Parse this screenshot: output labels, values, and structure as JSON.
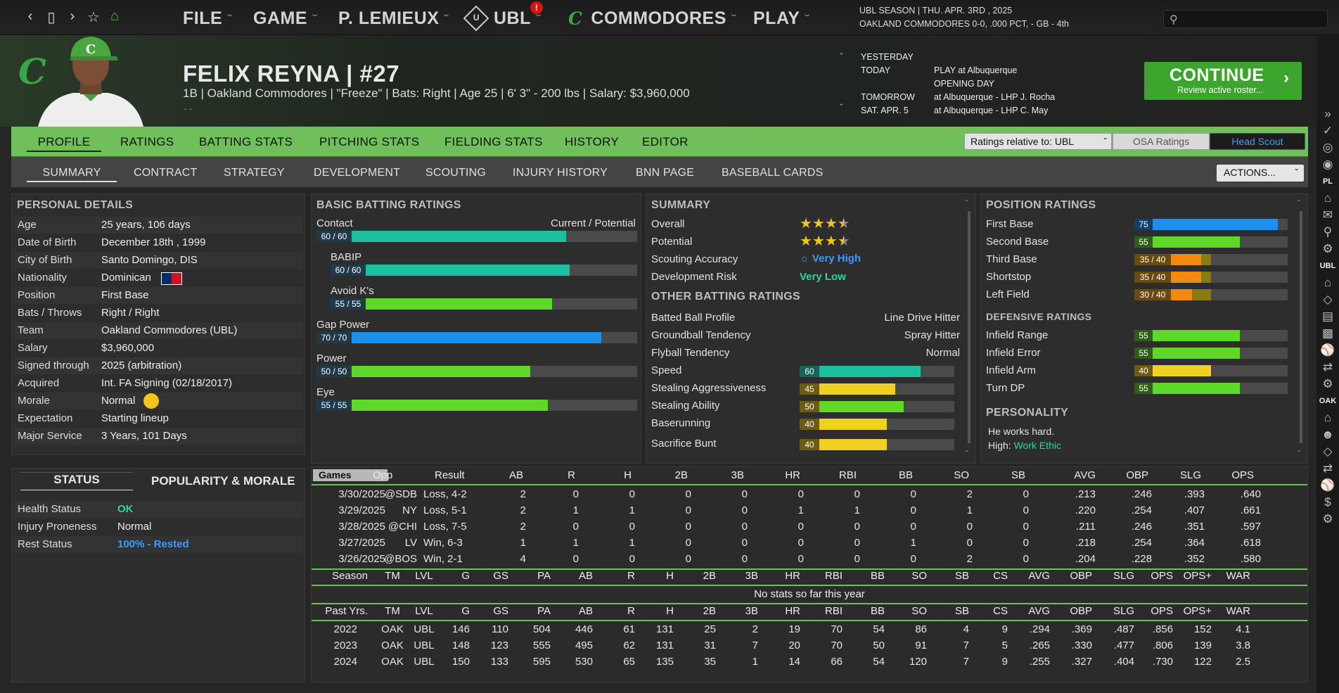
{
  "topnav": {
    "menus": [
      {
        "label": "FILE"
      },
      {
        "label": "GAME"
      },
      {
        "label": "P. LEMIEUX"
      },
      {
        "label": "UBL"
      },
      {
        "label": "COMMODORES"
      },
      {
        "label": "PLAY"
      }
    ],
    "badge": "!",
    "season_line1": "UBL SEASON  |  THU. APR. 3RD , 2025",
    "season_line2": "OAKLAND COMMODORES  0-0, .000 PCT, - GB - 4th"
  },
  "player": {
    "name": "FELIX REYNA  |  #27",
    "info": "1B | Oakland Commodores  |  \"Freeze\" | Bats: Right  |  Age 25  |  6' 3\"  - 200 lbs  |  Salary: $3,960,000"
  },
  "schedule": [
    {
      "label": "YESTERDAY",
      "value": ""
    },
    {
      "label": "TODAY",
      "value": "PLAY at Albuquerque"
    },
    {
      "label": "",
      "value": "OPENING DAY"
    },
    {
      "label": "TOMORROW",
      "value": "at Albuquerque - LHP J. Rocha"
    },
    {
      "label": "SAT. APR. 5",
      "value": "at Albuquerque - LHP C. May"
    }
  ],
  "continue": {
    "title": "CONTINUE",
    "sub": "Review active roster..."
  },
  "tabs_main": [
    "PROFILE",
    "RATINGS",
    "BATTING STATS",
    "PITCHING STATS",
    "FIELDING STATS",
    "HISTORY",
    "EDITOR"
  ],
  "ratings_select": "Ratings relative to: UBL",
  "osa_btn": "OSA Ratings",
  "scout_btn": "Head Scout",
  "tabs_sub": [
    "SUMMARY",
    "CONTRACT",
    "STRATEGY",
    "DEVELOPMENT",
    "SCOUTING",
    "INJURY HISTORY",
    "BNN PAGE",
    "BASEBALL CARDS"
  ],
  "actions": "ACTIONS...",
  "sidebar_labels": [
    "PL",
    "UBL",
    "OAK"
  ],
  "personal": {
    "title": "PERSONAL DETAILS",
    "rows": [
      [
        "Age",
        "25 years, 106 days"
      ],
      [
        "Date of Birth",
        "December 18th , 1999"
      ],
      [
        "City of Birth",
        "Santo Domingo, DIS"
      ],
      [
        "Nationality",
        "Dominican"
      ],
      [
        "Position",
        "First Base"
      ],
      [
        "Bats / Throws",
        "Right / Right"
      ],
      [
        "Team",
        "Oakland Commodores (UBL)"
      ],
      [
        "Salary",
        "$3,960,000"
      ],
      [
        "Signed through",
        "2025 (arbitration)"
      ],
      [
        "Acquired",
        "Int. FA Signing (02/18/2017)"
      ],
      [
        "Morale",
        "Normal"
      ],
      [
        "Expectation",
        "Starting lineup"
      ],
      [
        "Major Service",
        "3 Years, 101 Days"
      ]
    ]
  },
  "status": {
    "tab1": "STATUS",
    "tab2": "POPULARITY & MORALE",
    "rows": [
      [
        "Health Status",
        "OK"
      ],
      [
        "Injury Proneness",
        "Normal"
      ],
      [
        "Rest Status",
        "100% - Rested"
      ]
    ]
  },
  "batting": {
    "title": "BASIC BATTING RATINGS",
    "cp": "Current / Potential",
    "items": [
      {
        "label": "Contact",
        "num": "60 / 60",
        "val": 60,
        "color": "#1cc0a0",
        "indent": false
      },
      {
        "label": "BABIP",
        "num": "60 / 60",
        "val": 60,
        "color": "#1cc0a0",
        "indent": true
      },
      {
        "label": "Avoid K's",
        "num": "55 / 55",
        "val": 55,
        "color": "#5fd82a",
        "indent": true
      },
      {
        "label": "Gap Power",
        "num": "70 / 70",
        "val": 70,
        "color": "#1a90f0",
        "indent": false
      },
      {
        "label": "Power",
        "num": "50 / 50",
        "val": 50,
        "color": "#5fd82a",
        "indent": false
      },
      {
        "label": "Eye",
        "num": "55 / 55",
        "val": 55,
        "color": "#5fd82a",
        "indent": false
      }
    ]
  },
  "summary": {
    "title": "SUMMARY",
    "overall": "Overall",
    "potential": "Potential",
    "overall_stars": 3.5,
    "potential_stars": 3.5,
    "accuracy_label": "Scouting Accuracy",
    "accuracy": "Very High",
    "risk_label": "Development Risk",
    "risk": "Very Low",
    "other_title": "OTHER BATTING RATINGS",
    "other": [
      [
        "Batted Ball Profile",
        "Line Drive Hitter"
      ],
      [
        "Groundball Tendency",
        "Spray Hitter"
      ],
      [
        "Flyball Tendency",
        "Normal"
      ]
    ],
    "speed": [
      {
        "label": "Speed",
        "val": 60,
        "color": "#1cc0a0"
      },
      {
        "label": "Stealing Aggressiveness",
        "val": 45,
        "color": "#f0d020"
      },
      {
        "label": "Stealing Ability",
        "val": 50,
        "color": "#5fd82a"
      },
      {
        "label": "Baserunning",
        "val": 40,
        "color": "#f0d020"
      },
      {
        "label": "Sacrifice Bunt",
        "val": 40,
        "color": "#f0d020"
      }
    ]
  },
  "positions": {
    "title": "POSITION RATINGS",
    "items": [
      {
        "label": "First Base",
        "num": "75",
        "val": 75,
        "pot": 75,
        "color": "#1a90f0"
      },
      {
        "label": "Second Base",
        "num": "55",
        "val": 55,
        "pot": 55,
        "color": "#5fd82a"
      },
      {
        "label": "Third Base",
        "num": "35 / 40",
        "val": 35,
        "pot": 40,
        "color": "#f08a10"
      },
      {
        "label": "Shortstop",
        "num": "35 / 40",
        "val": 35,
        "pot": 40,
        "color": "#f08a10"
      },
      {
        "label": "Left Field",
        "num": "30 / 40",
        "val": 30,
        "pot": 40,
        "color": "#f08a10"
      }
    ],
    "def_title": "DEFENSIVE RATINGS",
    "def": [
      {
        "label": "Infield Range",
        "num": "55",
        "val": 55,
        "color": "#5fd82a"
      },
      {
        "label": "Infield Error",
        "num": "55",
        "val": 55,
        "color": "#5fd82a"
      },
      {
        "label": "Infield Arm",
        "num": "40",
        "val": 40,
        "color": "#f0d020"
      },
      {
        "label": "Turn DP",
        "num": "55",
        "val": 55,
        "color": "#5fd82a"
      }
    ],
    "personality_title": "PERSONALITY",
    "personality_text": "He works hard.",
    "high_label": "High:",
    "high_value": "Work Ethic"
  },
  "games": {
    "headers": [
      "Games",
      "Opp",
      "Result",
      "AB",
      "R",
      "H",
      "2B",
      "3B",
      "HR",
      "RBI",
      "BB",
      "SO",
      "SB",
      "AVG",
      "OBP",
      "SLG",
      "OPS"
    ],
    "rows": [
      [
        "3/30/2025",
        "@SDB",
        "Loss, 4-2",
        "2",
        "0",
        "0",
        "0",
        "0",
        "0",
        "0",
        "0",
        "2",
        "0",
        ".213",
        ".246",
        ".393",
        ".640"
      ],
      [
        "3/29/2025",
        "NY",
        "Loss, 5-1",
        "2",
        "1",
        "1",
        "0",
        "0",
        "1",
        "1",
        "0",
        "1",
        "0",
        ".220",
        ".254",
        ".407",
        ".661"
      ],
      [
        "3/28/2025",
        "@CHI",
        "Loss, 7-5",
        "2",
        "0",
        "0",
        "0",
        "0",
        "0",
        "0",
        "0",
        "0",
        "0",
        ".211",
        ".246",
        ".351",
        ".597"
      ],
      [
        "3/27/2025",
        "LV",
        "Win, 6-3",
        "1",
        "1",
        "1",
        "0",
        "0",
        "0",
        "0",
        "1",
        "0",
        "0",
        ".218",
        ".254",
        ".364",
        ".618"
      ],
      [
        "3/26/2025",
        "@BOS",
        "Win, 2-1",
        "4",
        "0",
        "0",
        "0",
        "0",
        "0",
        "0",
        "0",
        "2",
        "0",
        ".204",
        ".228",
        ".352",
        ".580"
      ]
    ]
  },
  "season": {
    "headers": [
      "Season",
      "TM",
      "LVL",
      "G",
      "GS",
      "PA",
      "AB",
      "R",
      "H",
      "2B",
      "3B",
      "HR",
      "RBI",
      "BB",
      "SO",
      "SB",
      "CS",
      "AVG",
      "OBP",
      "SLG",
      "OPS",
      "OPS+",
      "WAR"
    ],
    "empty": "No stats so far this year"
  },
  "past": {
    "headers": [
      "Past Yrs.",
      "TM",
      "LVL",
      "G",
      "GS",
      "PA",
      "AB",
      "R",
      "H",
      "2B",
      "3B",
      "HR",
      "RBI",
      "BB",
      "SO",
      "SB",
      "CS",
      "AVG",
      "OBP",
      "SLG",
      "OPS",
      "OPS+",
      "WAR"
    ],
    "rows": [
      [
        "2022",
        "OAK",
        "UBL",
        "146",
        "110",
        "504",
        "446",
        "61",
        "131",
        "25",
        "2",
        "19",
        "70",
        "54",
        "86",
        "4",
        "9",
        ".294",
        ".369",
        ".487",
        ".856",
        "152",
        "4.1"
      ],
      [
        "2023",
        "OAK",
        "UBL",
        "148",
        "123",
        "555",
        "495",
        "62",
        "131",
        "31",
        "7",
        "20",
        "70",
        "50",
        "91",
        "7",
        "5",
        ".265",
        ".330",
        ".477",
        ".806",
        "139",
        "3.8"
      ],
      [
        "2024",
        "OAK",
        "UBL",
        "150",
        "133",
        "595",
        "530",
        "65",
        "135",
        "35",
        "1",
        "14",
        "66",
        "54",
        "120",
        "7",
        "9",
        ".255",
        ".327",
        ".404",
        ".730",
        "122",
        "2.5"
      ]
    ]
  }
}
